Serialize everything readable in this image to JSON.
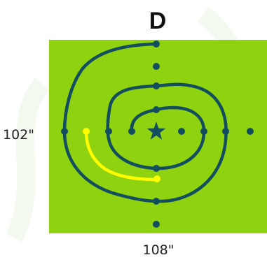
{
  "title": "D",
  "dimensions": {
    "height_label": "102\"",
    "width_label": "108\""
  },
  "icons": {
    "center": "star-icon"
  },
  "colors": {
    "field": "#8fd310",
    "course_line": "#134e5e",
    "highlight_line": "#ffff00",
    "marker": "#134e5e",
    "title_text": "#111111"
  }
}
